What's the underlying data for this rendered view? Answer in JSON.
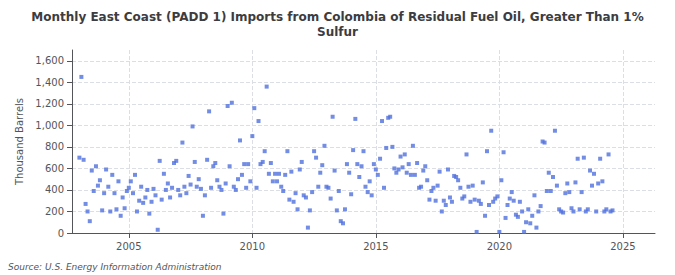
{
  "chart_data": {
    "type": "scatter",
    "title": "Monthly East Coast (PADD 1) Imports from Colombia of Residual Fuel Oil, Greater Than 1%\nSulfur",
    "ylabel": "Thousand Barrels",
    "annotations": [
      "Source: U.S. Energy Information Administration"
    ],
    "marker": "square",
    "grid": true,
    "xlim": [
      2002.7,
      2026.3
    ],
    "xticks": [
      2005,
      2010,
      2015,
      2020,
      2025
    ],
    "ylim": [
      0,
      1700
    ],
    "yticks": [
      0,
      200,
      400,
      600,
      800,
      {
        "value": 1000,
        "label": "1,000"
      },
      {
        "value": 1200,
        "label": "1,200"
      },
      {
        "value": 1400,
        "label": "1,400"
      },
      {
        "value": 1600,
        "label": "1,600"
      }
    ],
    "x": [
      2003.0,
      2003.08,
      2003.17,
      2003.25,
      2003.33,
      2003.42,
      2003.5,
      2003.58,
      2003.67,
      2003.75,
      2003.83,
      2003.92,
      2004.0,
      2004.08,
      2004.17,
      2004.25,
      2004.33,
      2004.42,
      2004.5,
      2004.58,
      2004.67,
      2004.75,
      2004.83,
      2004.92,
      2005.0,
      2005.08,
      2005.17,
      2005.25,
      2005.33,
      2005.42,
      2005.5,
      2005.58,
      2005.67,
      2005.75,
      2005.83,
      2005.92,
      2006.0,
      2006.08,
      2006.17,
      2006.25,
      2006.33,
      2006.42,
      2006.5,
      2006.58,
      2006.67,
      2006.75,
      2006.83,
      2006.92,
      2007.0,
      2007.08,
      2007.17,
      2007.25,
      2007.33,
      2007.42,
      2007.5,
      2007.58,
      2007.67,
      2007.75,
      2007.83,
      2007.92,
      2008.0,
      2008.08,
      2008.17,
      2008.25,
      2008.33,
      2008.42,
      2008.5,
      2008.58,
      2008.67,
      2008.75,
      2008.83,
      2008.92,
      2009.0,
      2009.08,
      2009.17,
      2009.25,
      2009.33,
      2009.42,
      2009.5,
      2009.58,
      2009.67,
      2009.75,
      2009.83,
      2009.92,
      2010.0,
      2010.08,
      2010.17,
      2010.25,
      2010.33,
      2010.42,
      2010.5,
      2010.58,
      2010.67,
      2010.75,
      2010.83,
      2010.92,
      2011.0,
      2011.08,
      2011.17,
      2011.25,
      2011.33,
      2011.42,
      2011.5,
      2011.58,
      2011.67,
      2011.75,
      2011.83,
      2011.92,
      2012.0,
      2012.08,
      2012.17,
      2012.25,
      2012.33,
      2012.42,
      2012.5,
      2012.58,
      2012.67,
      2012.75,
      2012.83,
      2012.92,
      2013.0,
      2013.08,
      2013.17,
      2013.25,
      2013.33,
      2013.42,
      2013.5,
      2013.58,
      2013.67,
      2013.75,
      2013.83,
      2013.92,
      2014.0,
      2014.08,
      2014.17,
      2014.25,
      2014.33,
      2014.42,
      2014.5,
      2014.58,
      2014.67,
      2014.75,
      2014.83,
      2014.92,
      2015.0,
      2015.08,
      2015.17,
      2015.25,
      2015.33,
      2015.42,
      2015.5,
      2015.58,
      2015.67,
      2015.75,
      2015.83,
      2015.92,
      2016.0,
      2016.08,
      2016.17,
      2016.25,
      2016.33,
      2016.42,
      2016.5,
      2016.58,
      2016.67,
      2016.75,
      2016.83,
      2016.92,
      2017.0,
      2017.08,
      2017.17,
      2017.25,
      2017.33,
      2017.42,
      2017.5,
      2017.58,
      2017.67,
      2017.75,
      2017.83,
      2017.92,
      2018.0,
      2018.08,
      2018.17,
      2018.25,
      2018.33,
      2018.42,
      2018.5,
      2018.58,
      2018.67,
      2018.75,
      2018.83,
      2018.92,
      2019.0,
      2019.08,
      2019.17,
      2019.25,
      2019.33,
      2019.42,
      2019.5,
      2019.58,
      2019.67,
      2019.75,
      2019.83,
      2019.92,
      2020.0,
      2020.08,
      2020.17,
      2020.25,
      2020.33,
      2020.42,
      2020.5,
      2020.58,
      2020.67,
      2020.75,
      2020.83,
      2020.92,
      2021.0,
      2021.08,
      2021.17,
      2021.25,
      2021.33,
      2021.42,
      2021.5,
      2021.58,
      2021.67,
      2021.75,
      2021.83,
      2021.92,
      2022.0,
      2022.08,
      2022.17,
      2022.25,
      2022.33,
      2022.42,
      2022.5,
      2022.58,
      2022.67,
      2022.75,
      2022.83,
      2022.92,
      2023.0,
      2023.08,
      2023.17,
      2023.25,
      2023.33,
      2023.42,
      2023.5,
      2023.58,
      2023.67,
      2023.75,
      2023.83,
      2023.92,
      2024.0,
      2024.08,
      2024.17,
      2024.25,
      2024.33,
      2024.42,
      2024.5,
      2024.58
    ],
    "values": [
      700,
      1450,
      680,
      270,
      200,
      110,
      580,
      390,
      620,
      440,
      490,
      210,
      370,
      590,
      430,
      200,
      540,
      370,
      220,
      480,
      160,
      330,
      230,
      390,
      420,
      480,
      370,
      540,
      200,
      300,
      430,
      280,
      330,
      400,
      180,
      290,
      410,
      350,
      30,
      670,
      310,
      550,
      400,
      460,
      330,
      420,
      650,
      670,
      400,
      350,
      840,
      430,
      370,
      530,
      450,
      990,
      660,
      430,
      500,
      410,
      160,
      350,
      680,
      1130,
      420,
      620,
      650,
      490,
      430,
      400,
      180,
      460,
      1180,
      620,
      1210,
      430,
      400,
      500,
      860,
      540,
      640,
      420,
      640,
      480,
      900,
      1160,
      420,
      1040,
      640,
      660,
      760,
      1360,
      550,
      650,
      480,
      550,
      480,
      550,
      430,
      390,
      540,
      760,
      310,
      570,
      290,
      370,
      220,
      590,
      660,
      350,
      330,
      50,
      210,
      380,
      760,
      700,
      430,
      560,
      630,
      810,
      430,
      420,
      320,
      1080,
      580,
      210,
      390,
      110,
      90,
      220,
      640,
      560,
      360,
      770,
      1060,
      640,
      520,
      620,
      760,
      430,
      380,
      480,
      350,
      640,
      590,
      540,
      690,
      1040,
      420,
      790,
      1070,
      1080,
      800,
      600,
      560,
      590,
      710,
      610,
      730,
      560,
      640,
      540,
      810,
      540,
      650,
      420,
      430,
      580,
      620,
      490,
      310,
      390,
      420,
      300,
      440,
      570,
      200,
      300,
      260,
      590,
      330,
      290,
      530,
      520,
      490,
      420,
      320,
      340,
      730,
      430,
      290,
      440,
      310,
      10,
      300,
      270,
      470,
      160,
      760,
      260,
      950,
      290,
      320,
      340,
      10,
      490,
      750,
      140,
      260,
      320,
      380,
      300,
      170,
      150,
      290,
      200,
      10,
      100,
      220,
      90,
      160,
      350,
      50,
      200,
      250,
      850,
      840,
      390,
      560,
      390,
      520,
      950,
      440,
      220,
      200,
      190,
      370,
      460,
      380,
      230,
      200,
      470,
      690,
      220,
      380,
      700,
      200,
      220,
      580,
      440,
      550,
      200,
      460,
      690,
      480,
      200,
      220,
      730,
      200,
      210
    ]
  }
}
